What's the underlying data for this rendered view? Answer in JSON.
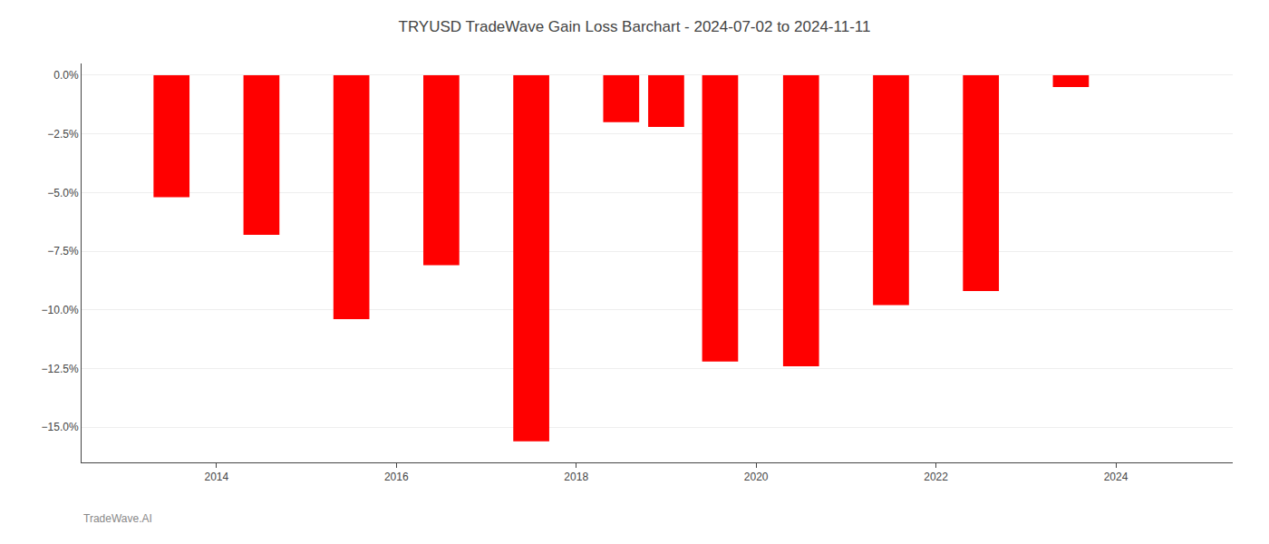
{
  "chart_data": {
    "type": "bar",
    "title": "TRYUSD TradeWave Gain Loss Barchart - 2024-07-02 to 2024-11-11",
    "annotations": [
      "TradeWave.AI"
    ],
    "x": [
      2013.5,
      2014.5,
      2015.5,
      2016.5,
      2017.5,
      2018.5,
      2019.0,
      2019.6,
      2020.5,
      2021.5,
      2022.5,
      2023.5,
      2024.3
    ],
    "values": [
      -5.2,
      -6.8,
      -10.4,
      -8.1,
      -15.6,
      -2.0,
      -2.2,
      -12.2,
      -12.4,
      -9.8,
      -9.2,
      -0.5,
      -0.0
    ],
    "color": "#ff0000",
    "xlim": [
      2012.5,
      2025.3
    ],
    "xticks": [
      2014,
      2016,
      2018,
      2020,
      2022,
      2024
    ],
    "ylim": [
      -16.5,
      0.5
    ],
    "yticks": [
      {
        "value": 0.0,
        "label": "0.0%"
      },
      {
        "value": -2.5,
        "label": "−2.5%"
      },
      {
        "value": -5.0,
        "label": "−5.0%"
      },
      {
        "value": -7.5,
        "label": "−7.5%"
      },
      {
        "value": -10.0,
        "label": "−10.0%"
      },
      {
        "value": -12.5,
        "label": "−12.5%"
      },
      {
        "value": -15.0,
        "label": "−15.0%"
      }
    ],
    "grid": true
  }
}
